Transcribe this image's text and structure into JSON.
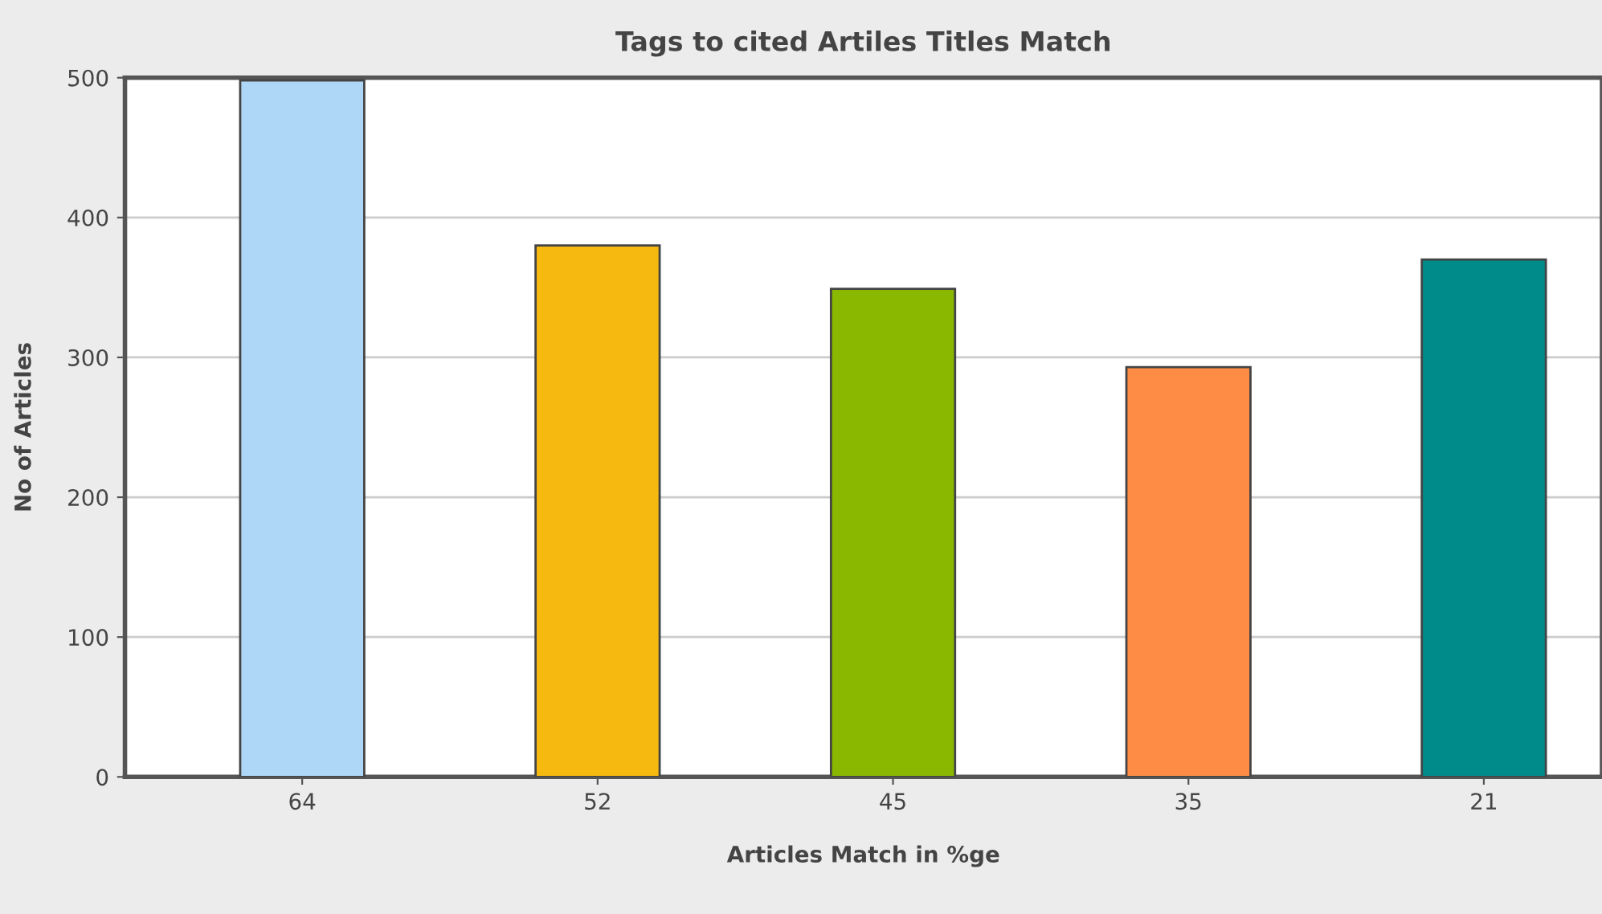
{
  "chart_data": {
    "type": "bar",
    "title": "Tags to cited Artiles Titles Match",
    "xlabel": "Articles Match in %ge",
    "ylabel": "No of Articles",
    "categories": [
      "64",
      "52",
      "45",
      "35",
      "21"
    ],
    "values": [
      498,
      380,
      349,
      293,
      370
    ],
    "colors": [
      "#aed6f7",
      "#f5b910",
      "#8ab800",
      "#ff8c45",
      "#008b8b"
    ],
    "ylim": [
      0,
      500
    ],
    "yticks": [
      0,
      100,
      200,
      300,
      400,
      500
    ],
    "grid": "y"
  }
}
